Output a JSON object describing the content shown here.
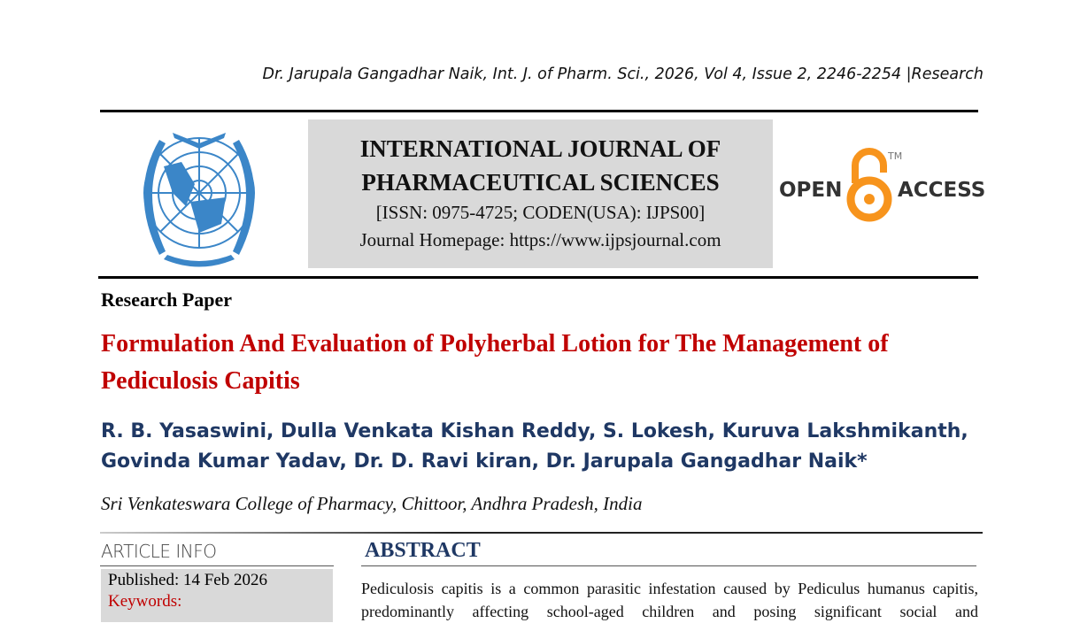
{
  "running_header": "Dr. Jarupala Gangadhar Naik, Int. J. of Pharm. Sci., 2026, Vol 4, Issue 2, 2246-2254 |Research",
  "journal": {
    "name_line1": "INTERNATIONAL JOURNAL OF",
    "name_line2": "PHARMACEUTICAL SCIENCES",
    "issn": "[ISSN: 0975-4725; CODEN(USA): IJPS00]",
    "homepage": "Journal Homepage: https://www.ijpsjournal.com"
  },
  "open_access": {
    "open": "OPEN",
    "access": "ACCESS",
    "tm": "TM",
    "color": "#f7941d"
  },
  "paper_type": "Research Paper",
  "title": "Formulation And Evaluation of Polyherbal Lotion for The Management of Pediculosis Capitis",
  "authors": "R. B. Yasaswini, Dulla Venkata Kishan Reddy, S. Lokesh, Kuruva Lakshmikanth, Govinda Kumar Yadav, Dr. D. Ravi kiran, Dr. Jarupala Gangadhar Naik*",
  "affiliation": "Sri Venkateswara College of Pharmacy, Chittoor, Andhra Pradesh, India",
  "article_info": {
    "heading": "ARTICLE INFO",
    "published": "Published:  14 Feb 2026",
    "keywords_label": "Keywords:"
  },
  "abstract": {
    "heading": "ABSTRACT",
    "text": "Pediculosis capitis is a common parasitic infestation caused by Pediculus humanus capitis, predominantly affecting school-aged children and posing significant social and"
  }
}
